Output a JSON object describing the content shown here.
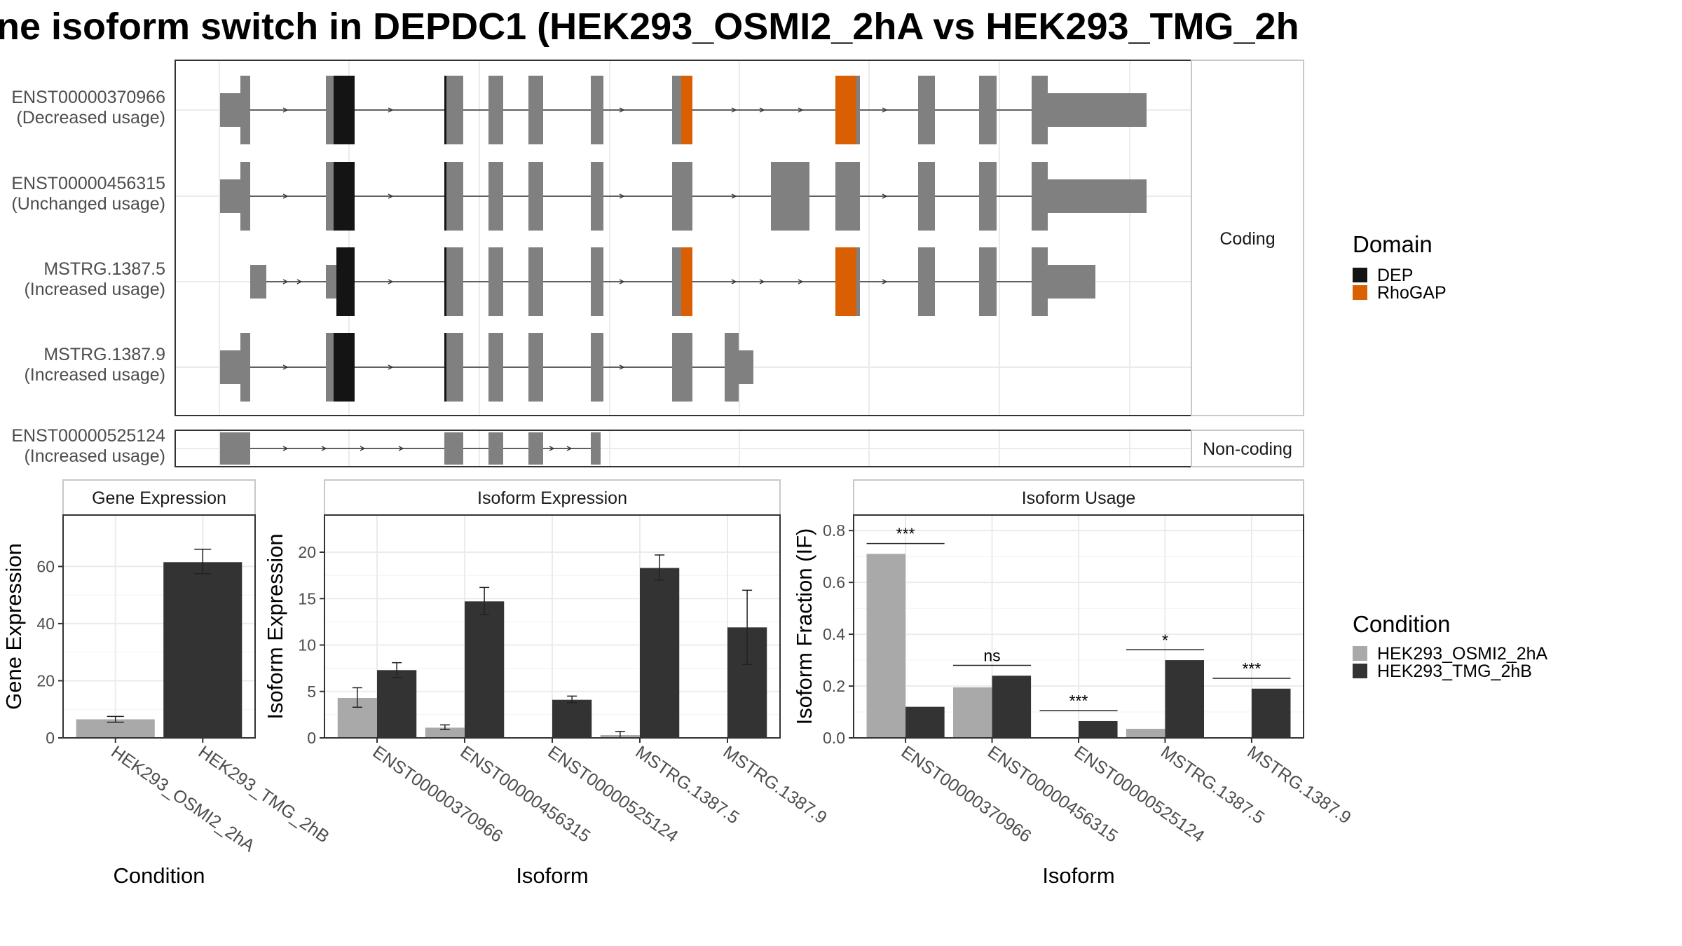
{
  "title": "ne isoform switch in DEPDC1 (HEK293_OSMI2_2hA vs HEK293_TMG_2h",
  "colors": {
    "exon": "#808080",
    "dep": "#141414",
    "rhogap": "#d95f02",
    "cond_a": "#a9a9a9",
    "cond_b": "#333333"
  },
  "panel_labels": {
    "coding": "Coding",
    "noncoding": "Non-coding"
  },
  "domain_legend": {
    "title": "Domain",
    "items": [
      {
        "label": "DEP",
        "color": "#141414"
      },
      {
        "label": "RhoGAP",
        "color": "#d95f02"
      }
    ]
  },
  "condition_legend": {
    "title": "Condition",
    "items": [
      {
        "label": "HEK293_OSMI2_2hA",
        "color": "#a9a9a9"
      },
      {
        "label": "HEK293_TMG_2hB",
        "color": "#333333"
      }
    ]
  },
  "transcripts": [
    {
      "id": "ENST00000370966",
      "usage": "(Decreased usage)",
      "group": "coding"
    },
    {
      "id": "ENST00000456315",
      "usage": "(Unchanged usage)",
      "group": "coding"
    },
    {
      "id": "MSTRG.1387.5",
      "usage": "(Increased usage)",
      "group": "coding"
    },
    {
      "id": "MSTRG.1387.9",
      "usage": "(Increased usage)",
      "group": "coding"
    },
    {
      "id": "ENST00000525124",
      "usage": "(Increased usage)",
      "group": "noncoding"
    }
  ],
  "chart_data": [
    {
      "type": "bar",
      "title": "Gene Expression",
      "xlabel": "Condition",
      "ylabel": "Gene Expression",
      "categories": [
        "HEK293_OSMI2_2hA",
        "HEK293_TMG_2hB"
      ],
      "ylim": [
        0,
        78
      ],
      "yticks": [
        0,
        20,
        40,
        60
      ],
      "series": [
        {
          "values": [
            6.5,
            61.5
          ],
          "errors": [
            [
              5.5,
              7.5
            ],
            [
              57.5,
              66
            ]
          ],
          "colors": [
            "#a9a9a9",
            "#333333"
          ]
        }
      ]
    },
    {
      "type": "bar",
      "title": "Isoform Expression",
      "xlabel": "Isoform",
      "ylabel": "Isoform Expression",
      "categories": [
        "ENST00000370966",
        "ENST00000456315",
        "ENST00000525124",
        "MSTRG.1387.5",
        "MSTRG.1387.9"
      ],
      "ylim": [
        0,
        24
      ],
      "yticks": [
        0,
        5,
        10,
        15,
        20
      ],
      "series": [
        {
          "name": "HEK293_OSMI2_2hA",
          "values": [
            4.3,
            1.1,
            0.0,
            0.3,
            0.0
          ],
          "errors": [
            [
              3.3,
              5.4
            ],
            [
              0.9,
              1.4
            ],
            [
              0,
              0
            ],
            [
              0.0,
              0.7
            ],
            [
              0,
              0
            ]
          ]
        },
        {
          "name": "HEK293_TMG_2hB",
          "values": [
            7.3,
            14.7,
            4.1,
            18.3,
            11.9
          ],
          "errors": [
            [
              6.5,
              8.1
            ],
            [
              13.3,
              16.2
            ],
            [
              3.8,
              4.5
            ],
            [
              17.0,
              19.7
            ],
            [
              7.9,
              15.9
            ]
          ]
        }
      ]
    },
    {
      "type": "bar",
      "title": "Isoform Usage",
      "xlabel": "Isoform",
      "ylabel": "Isoform Fraction (IF)",
      "categories": [
        "ENST00000370966",
        "ENST00000456315",
        "ENST00000525124",
        "MSTRG.1387.5",
        "MSTRG.1387.9"
      ],
      "ylim": [
        0,
        0.86
      ],
      "yticks": [
        "0.0",
        "0.2",
        "0.4",
        "0.6",
        "0.8"
      ],
      "series": [
        {
          "name": "HEK293_OSMI2_2hA",
          "values": [
            0.71,
            0.195,
            0.0,
            0.035,
            0.0
          ]
        },
        {
          "name": "HEK293_TMG_2hB",
          "values": [
            0.12,
            0.24,
            0.065,
            0.3,
            0.19
          ]
        }
      ],
      "significance": [
        {
          "label": "***",
          "y": 0.75
        },
        {
          "label": "ns",
          "y": 0.28
        },
        {
          "label": "***",
          "y": 0.105
        },
        {
          "label": "*",
          "y": 0.34
        },
        {
          "label": "***",
          "y": 0.23
        }
      ]
    }
  ]
}
